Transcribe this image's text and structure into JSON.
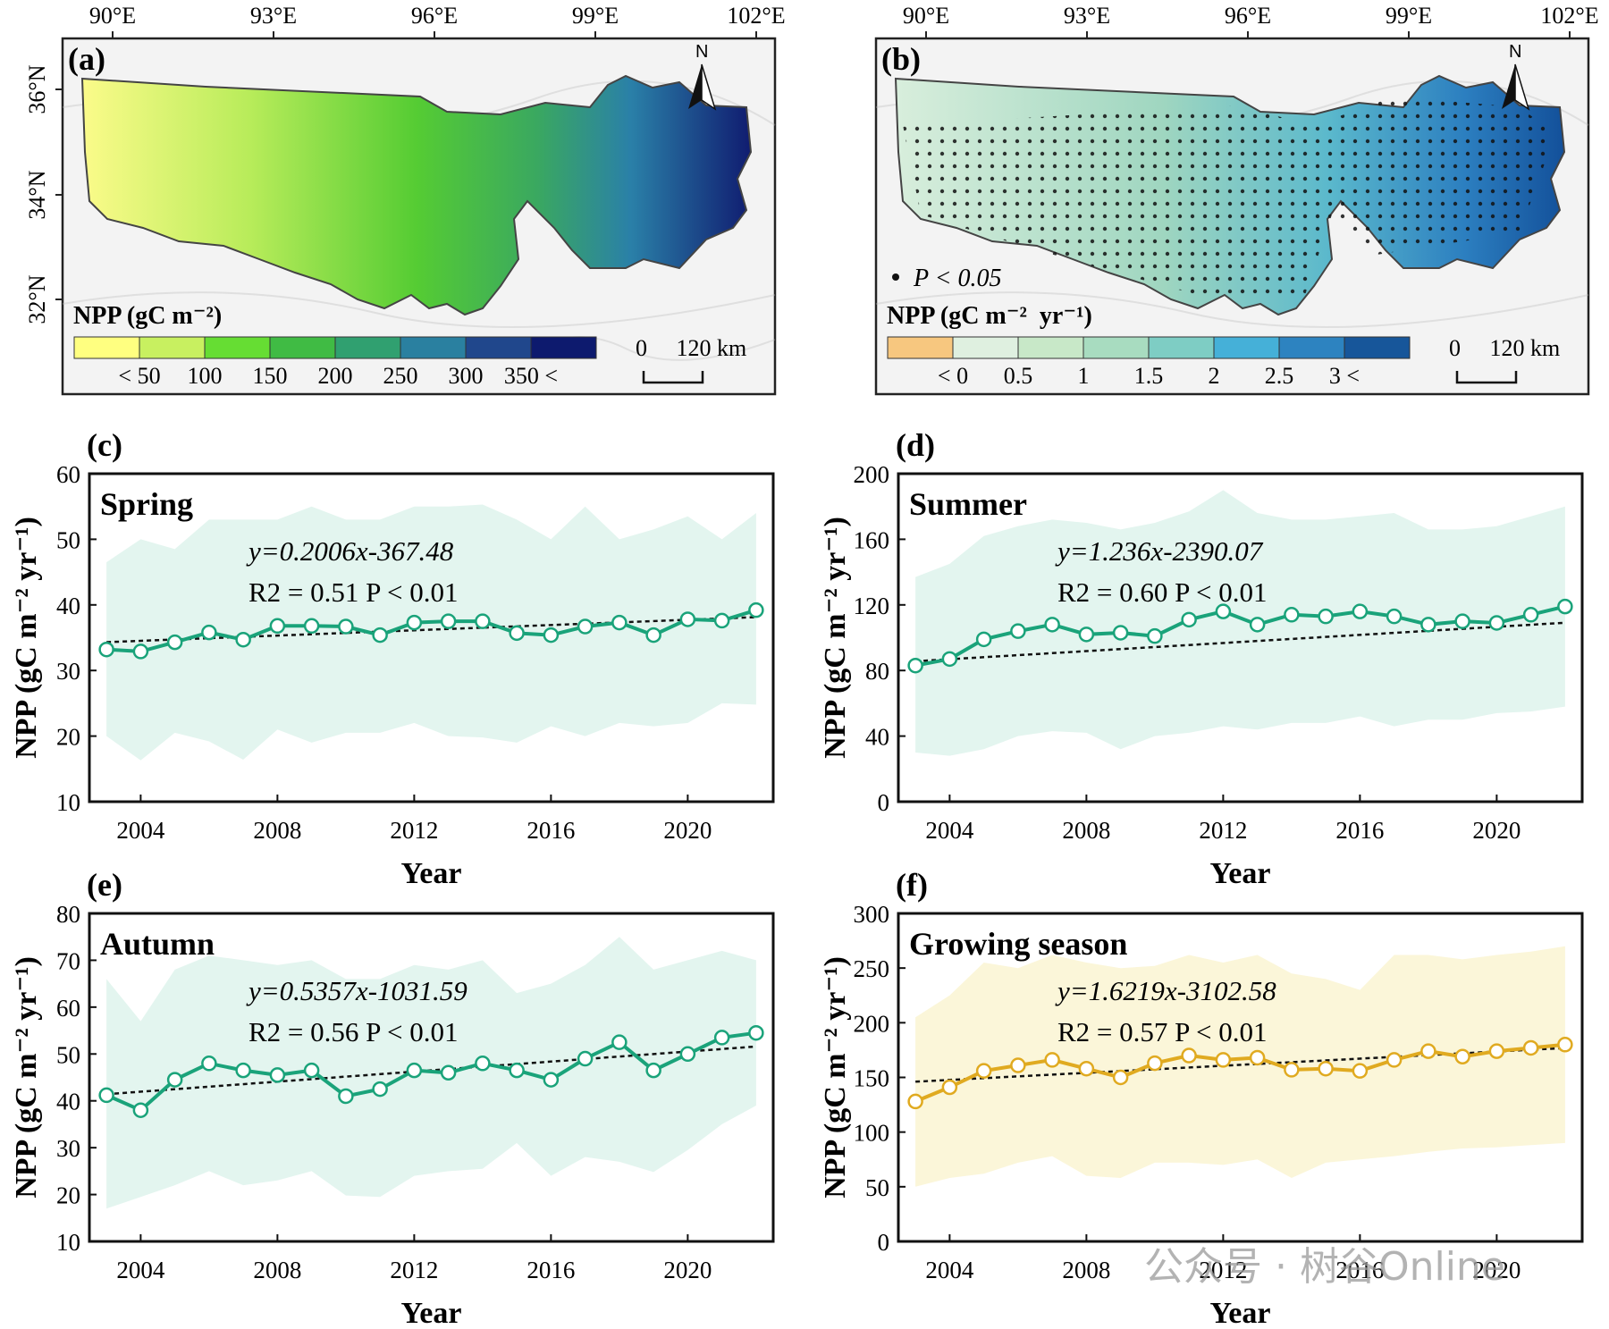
{
  "maps": {
    "a": {
      "label": "(a)",
      "lon_ticks": [
        "90°E",
        "93°E",
        "96°E",
        "99°E",
        "102°E"
      ],
      "lat_ticks": [
        "36°N",
        "34°N",
        "32°N"
      ],
      "legend_title": "NPP (gC m⁻²)",
      "legend_labels": [
        "< 50",
        "100",
        "150",
        "200",
        "250",
        "300",
        "350 <"
      ],
      "legend_colors": [
        "#ffff80",
        "#c8f060",
        "#66dd33",
        "#40bb44",
        "#30a070",
        "#2a80a0",
        "#20478c",
        "#0d1a6e"
      ],
      "scale_label": "0     120 km",
      "north": "N"
    },
    "b": {
      "label": "(b)",
      "lon_ticks": [
        "90°E",
        "93°E",
        "96°E",
        "99°E",
        "102°E"
      ],
      "significance_note": "P < 0.05",
      "legend_title": "NPP (gC m⁻²  yr⁻¹)",
      "legend_labels": [
        "< 0",
        "0.5",
        "1",
        "1.5",
        "2",
        "2.5",
        "3 <"
      ],
      "legend_colors": [
        "#f7c77f",
        "#dff0e0",
        "#c8e8c8",
        "#a8dcc0",
        "#7ecdc4",
        "#45b0d8",
        "#2d83c0",
        "#17569a"
      ],
      "scale_label": "0     120 km",
      "north": "N"
    }
  },
  "chart_data": [
    {
      "panel": "(c)",
      "type": "line",
      "title": "Spring",
      "xlabel": "Year",
      "ylabel": "NPP (gC m⁻² yr⁻¹)",
      "xlim": [
        2002.5,
        2022.5
      ],
      "ylim": [
        10,
        60
      ],
      "xticks": [
        2004,
        2008,
        2012,
        2016,
        2020
      ],
      "yticks": [
        10,
        20,
        30,
        40,
        50,
        60
      ],
      "x": [
        2003,
        2004,
        2005,
        2006,
        2007,
        2008,
        2009,
        2010,
        2011,
        2012,
        2013,
        2014,
        2015,
        2016,
        2017,
        2018,
        2019,
        2020,
        2021,
        2022
      ],
      "values": [
        33.2,
        32.9,
        34.3,
        35.8,
        34.7,
        36.8,
        36.8,
        36.7,
        35.4,
        37.3,
        37.5,
        37.5,
        35.7,
        35.4,
        36.7,
        37.3,
        35.4,
        37.8,
        37.6,
        39.2
      ],
      "band_upper": [
        46.5,
        50,
        48.5,
        53,
        53,
        53,
        55,
        53,
        53,
        55,
        55,
        55.3,
        53,
        50,
        55,
        50,
        51.5,
        53.5,
        50,
        54
      ],
      "band_lower": [
        20,
        16.3,
        20.5,
        19.2,
        16.4,
        21,
        19,
        20.5,
        20.5,
        22,
        20,
        19.8,
        19,
        21.5,
        20,
        22,
        21.5,
        22,
        25,
        24.8
      ],
      "trend": {
        "slope": 0.2006,
        "intercept": -367.48
      },
      "equation": "y=0.2006x-367.48",
      "r2": "R2 = 0.51 P < 0.01",
      "color": "#1aa37a",
      "band_color": "#e3f5ef"
    },
    {
      "panel": "(d)",
      "type": "line",
      "title": "Summer",
      "xlabel": "Year",
      "ylabel": "NPP (gC m⁻² yr⁻¹)",
      "xlim": [
        2002.5,
        2022.5
      ],
      "ylim": [
        0,
        200
      ],
      "xticks": [
        2004,
        2008,
        2012,
        2016,
        2020
      ],
      "yticks": [
        0,
        40,
        80,
        120,
        160,
        200
      ],
      "x": [
        2003,
        2004,
        2005,
        2006,
        2007,
        2008,
        2009,
        2010,
        2011,
        2012,
        2013,
        2014,
        2015,
        2016,
        2017,
        2018,
        2019,
        2020,
        2021,
        2022
      ],
      "values": [
        83,
        87,
        99,
        104,
        108,
        102,
        103,
        101,
        111,
        116,
        108,
        114,
        113,
        116,
        113,
        108,
        110,
        109,
        114,
        119
      ],
      "band_upper": [
        137,
        145,
        162,
        168,
        172,
        170,
        166,
        170,
        177,
        190,
        176,
        172,
        172,
        174,
        176,
        166,
        166,
        168,
        174,
        180
      ],
      "band_lower": [
        30,
        28,
        32,
        40,
        43,
        42,
        32,
        40,
        42,
        46,
        44,
        48,
        48,
        52,
        46,
        50,
        50,
        54,
        55,
        58
      ],
      "trend": {
        "slope": 1.236,
        "intercept": -2390.07
      },
      "equation": "y=1.236x-2390.07",
      "r2": "R2 = 0.60 P < 0.01",
      "color": "#1aa37a",
      "band_color": "#e3f5ef"
    },
    {
      "panel": "(e)",
      "type": "line",
      "title": "Autumn",
      "xlabel": "Year",
      "ylabel": "NPP (gC m⁻² yr⁻¹)",
      "xlim": [
        2002.5,
        2022.5
      ],
      "ylim": [
        10,
        80
      ],
      "xticks": [
        2004,
        2008,
        2012,
        2016,
        2020
      ],
      "yticks": [
        10,
        20,
        30,
        40,
        50,
        60,
        70,
        80
      ],
      "x": [
        2003,
        2004,
        2005,
        2006,
        2007,
        2008,
        2009,
        2010,
        2011,
        2012,
        2013,
        2014,
        2015,
        2016,
        2017,
        2018,
        2019,
        2020,
        2021,
        2022
      ],
      "values": [
        41.2,
        38,
        44.5,
        48,
        46.5,
        45.5,
        46.5,
        41,
        42.5,
        46.5,
        46,
        48,
        46.5,
        44.5,
        49,
        52.5,
        46.5,
        50,
        53.5,
        54.5
      ],
      "band_upper": [
        66,
        57,
        68,
        71,
        70,
        69,
        70,
        66,
        66,
        69,
        68,
        70,
        63,
        65,
        69,
        75,
        68,
        70,
        72,
        70
      ],
      "band_lower": [
        17,
        19.5,
        22,
        25,
        22,
        23,
        25,
        19.8,
        19.5,
        24,
        25,
        25.5,
        31,
        24,
        28,
        27,
        24.8,
        29.5,
        35,
        39
      ],
      "trend": {
        "slope": 0.5357,
        "intercept": -1031.59
      },
      "equation": "y=0.5357x-1031.59",
      "r2": "R2 = 0.56 P < 0.01",
      "color": "#1aa37a",
      "band_color": "#e3f5ef"
    },
    {
      "panel": "(f)",
      "type": "line",
      "title": "Growing season",
      "xlabel": "Year",
      "ylabel": "NPP (gC m⁻² yr⁻¹)",
      "xlim": [
        2002.5,
        2022.5
      ],
      "ylim": [
        0,
        300
      ],
      "xticks": [
        2004,
        2008,
        2012,
        2016,
        2020
      ],
      "yticks": [
        0,
        50,
        100,
        150,
        200,
        250,
        300
      ],
      "x": [
        2003,
        2004,
        2005,
        2006,
        2007,
        2008,
        2009,
        2010,
        2011,
        2012,
        2013,
        2014,
        2015,
        2016,
        2017,
        2018,
        2019,
        2020,
        2021,
        2022
      ],
      "values": [
        128,
        141,
        156,
        161,
        166,
        158,
        150,
        163,
        170,
        166,
        168,
        157,
        158,
        156,
        166,
        174,
        169,
        174,
        177,
        180
      ],
      "band_upper": [
        205,
        225,
        255,
        250,
        262,
        255,
        250,
        252,
        262,
        255,
        262,
        245,
        240,
        230,
        262,
        262,
        258,
        262,
        265,
        270
      ],
      "band_lower": [
        50,
        58,
        62,
        72,
        78,
        60,
        58,
        72,
        72,
        70,
        75,
        58,
        72,
        75,
        78,
        82,
        85,
        86,
        88,
        90
      ],
      "trend": {
        "slope": 1.6219,
        "intercept": -3102.58
      },
      "equation": "y=1.6219x-3102.58",
      "r2": "R2 = 0.57 P < 0.01",
      "color": "#e0aa20",
      "band_color": "#fbf6d9"
    }
  ],
  "watermark": "公众号 · 树谷Online"
}
